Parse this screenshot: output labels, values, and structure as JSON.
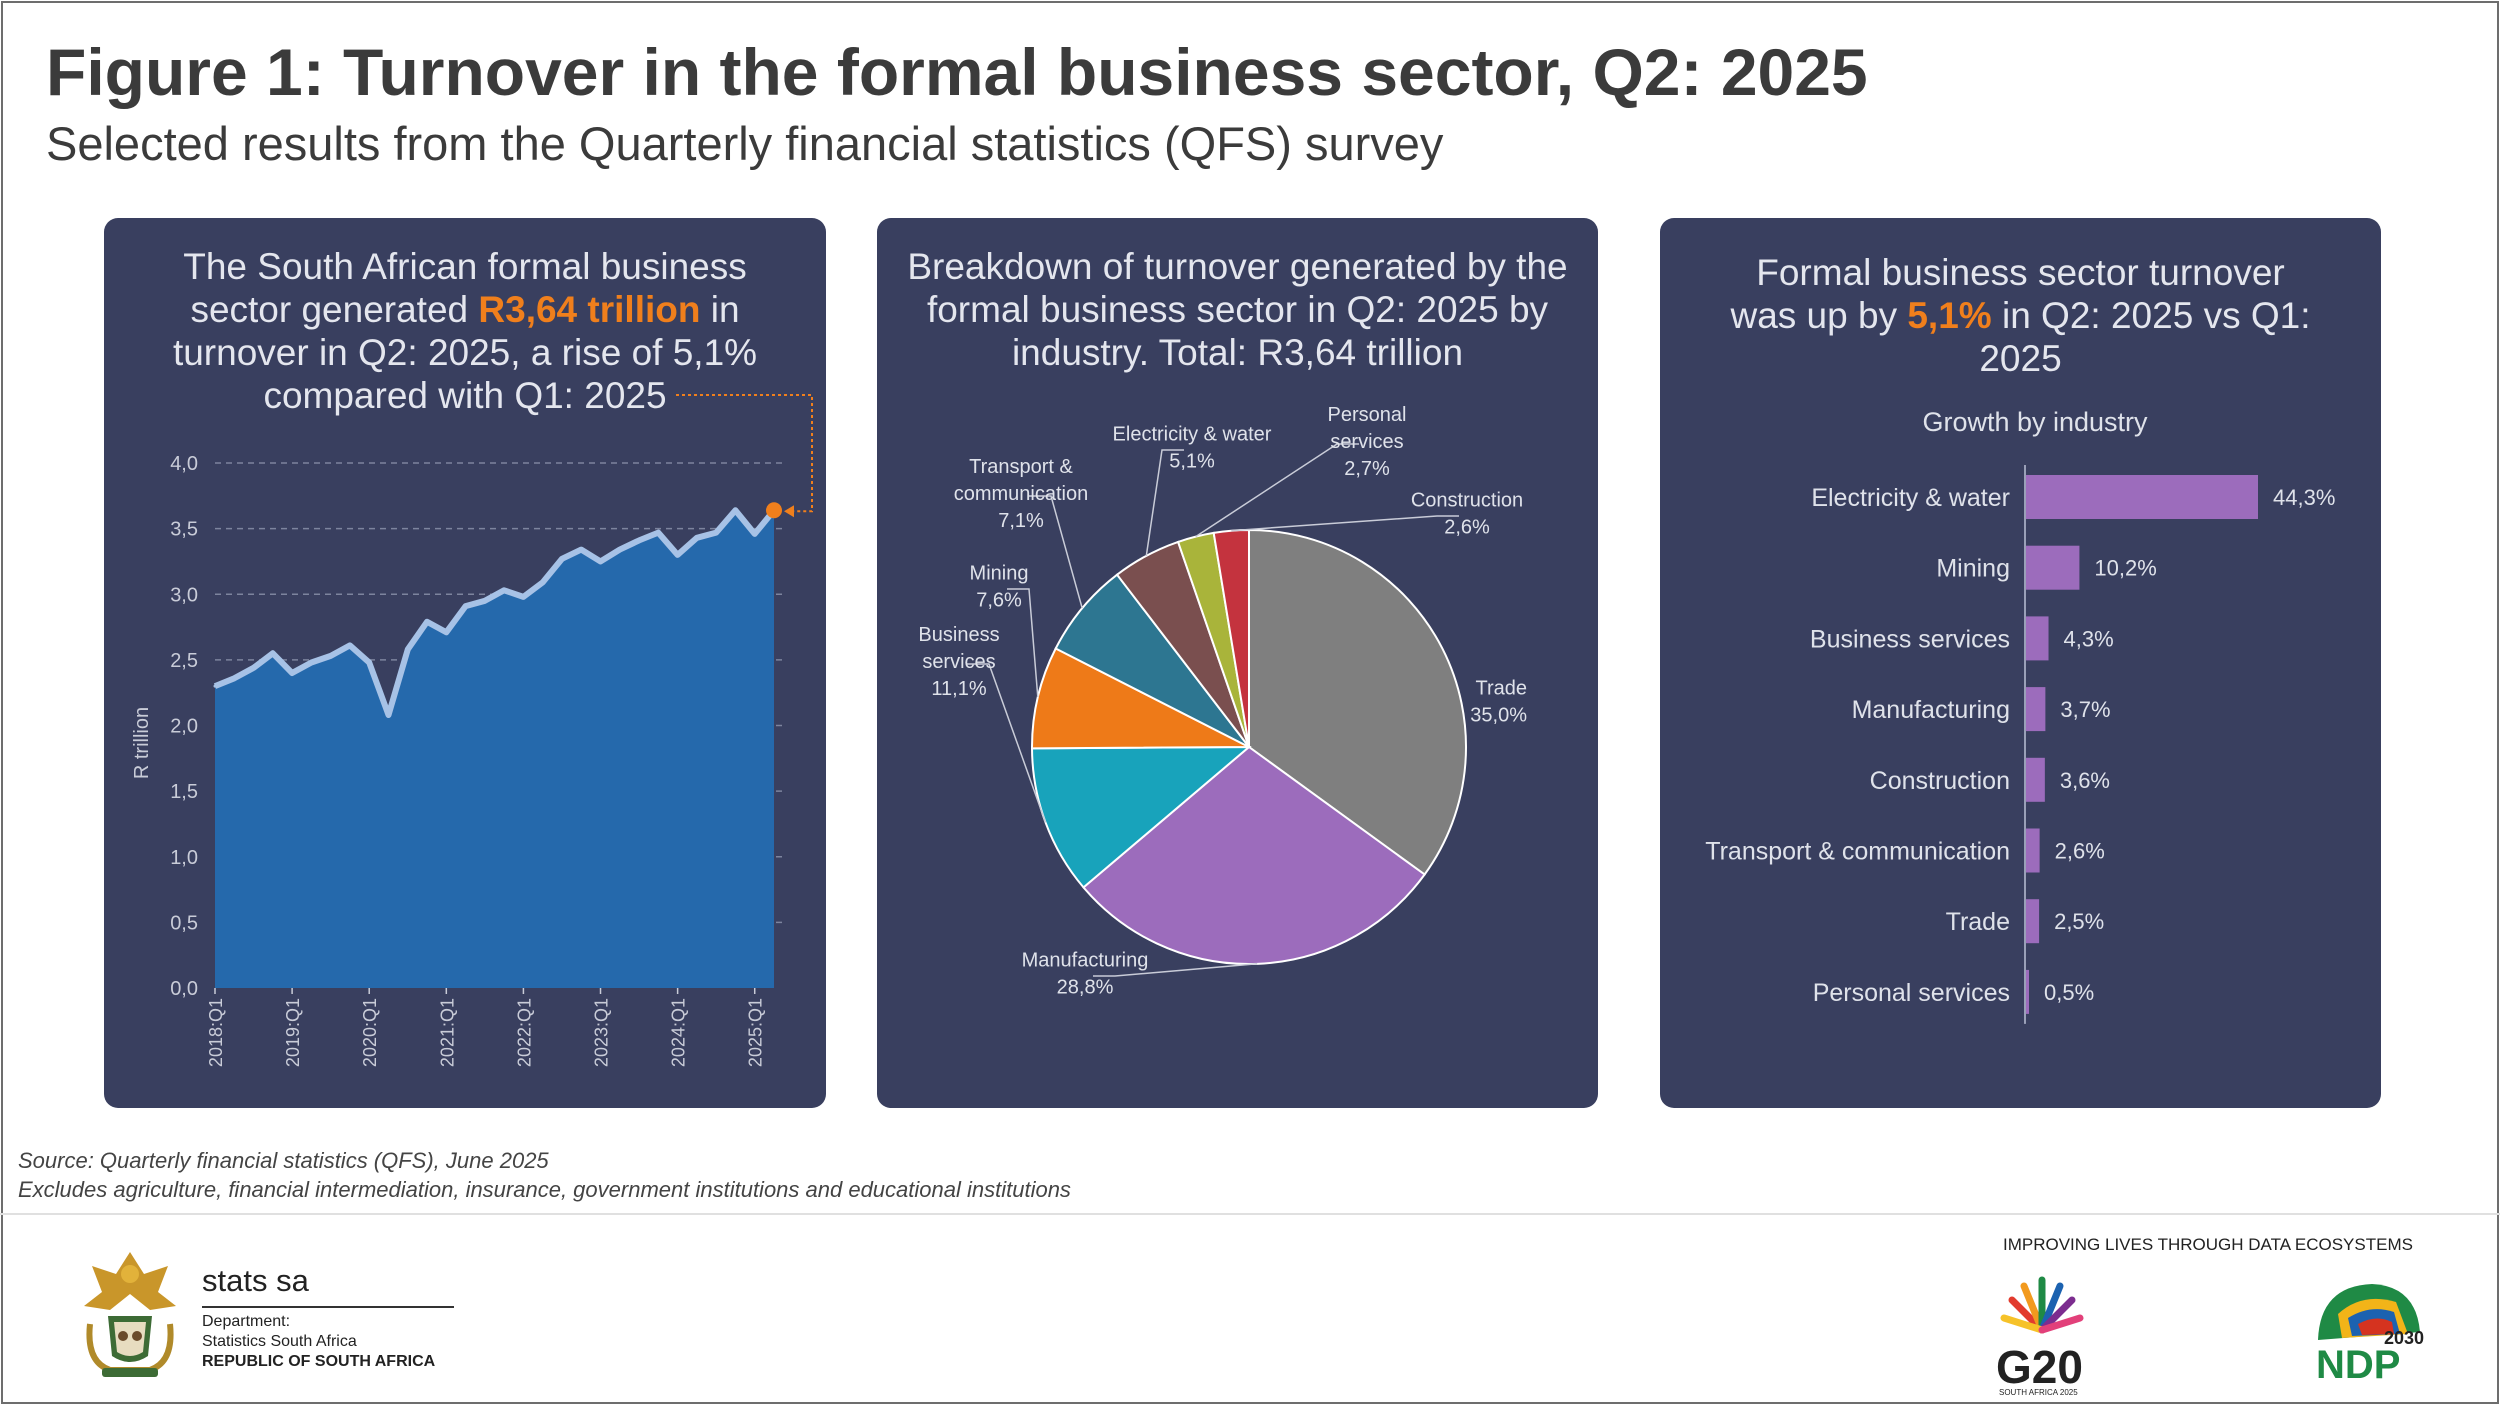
{
  "header": {
    "title": "Figure 1: Turnover in the formal business sector, Q2: 2025",
    "subtitle": "Selected results from the Quarterly financial statistics (QFS) survey"
  },
  "panel1": {
    "text_a": "The South African formal business sector generated ",
    "highlight": "R3,64 trillion",
    "text_b": " in turnover in Q2: 2025, a rise of 5,1% compared with Q1: 2025"
  },
  "panel2": {
    "text": "Breakdown of turnover generated by the formal business sector in Q2: 2025 by industry. Total: R3,64 trillion"
  },
  "panel3": {
    "text_a": "Formal business sector turnover was up by ",
    "highlight": "5,1%",
    "text_b": " in Q2: 2025 vs Q1: 2025"
  },
  "colors": {
    "panel_bg": "#393f5f",
    "accent": "#f07f1c",
    "area_fill": "#2569ac",
    "area_line": "#a7c2e6",
    "bar": "#9c6cbc"
  },
  "chart_data": [
    {
      "type": "area",
      "ylabel": "R trillion",
      "ylim": [
        0,
        4.0
      ],
      "yticks": [
        "0,0",
        "0,5",
        "1,0",
        "1,5",
        "2,0",
        "2,5",
        "3,0",
        "3,5",
        "4,0"
      ],
      "xtick_labels": [
        "2018:Q1",
        "2019:Q1",
        "2020:Q1",
        "2021:Q1",
        "2022:Q1",
        "2023:Q1",
        "2024:Q1",
        "2025:Q1"
      ],
      "xtick_index": [
        0,
        4,
        8,
        12,
        16,
        20,
        24,
        28
      ],
      "values": [
        2.3,
        2.36,
        2.44,
        2.55,
        2.4,
        2.48,
        2.53,
        2.61,
        2.48,
        2.08,
        2.58,
        2.79,
        2.71,
        2.91,
        2.95,
        3.03,
        2.98,
        3.09,
        3.27,
        3.34,
        3.25,
        3.34,
        3.41,
        3.47,
        3.3,
        3.43,
        3.47,
        3.64,
        3.46,
        3.64
      ],
      "grid": "dashed-horizontal",
      "annotation": "last point highlighted in orange"
    },
    {
      "type": "pie",
      "total": "R3,64 trillion",
      "slices": [
        {
          "name": "Trade",
          "pct_label": "35,0%",
          "value": 35.0,
          "color": "#7f7f7f"
        },
        {
          "name": "Manufacturing",
          "pct_label": "28,8%",
          "value": 28.8,
          "color": "#9c6cbc"
        },
        {
          "name": "Business services",
          "name_lines": [
            "Business",
            "services"
          ],
          "pct_label": "11,1%",
          "value": 11.1,
          "color": "#18a3bb"
        },
        {
          "name": "Mining",
          "pct_label": "7,6%",
          "value": 7.6,
          "color": "#ee7a18"
        },
        {
          "name": "Transport & communication",
          "name_lines": [
            "Transport &",
            "communication"
          ],
          "pct_label": "7,1%",
          "value": 7.1,
          "color": "#2d7691"
        },
        {
          "name": "Electricity & water",
          "pct_label": "5,1%",
          "value": 5.1,
          "color": "#7a4f4f"
        },
        {
          "name": "Personal services",
          "name_lines": [
            "Personal",
            "services"
          ],
          "pct_label": "2,7%",
          "value": 2.7,
          "color": "#a9b43a"
        },
        {
          "name": "Construction",
          "pct_label": "2,6%",
          "value": 2.6,
          "color": "#c4333e"
        }
      ]
    },
    {
      "type": "bar",
      "orientation": "horizontal",
      "title": "Growth by industry",
      "categories": [
        "Electricity & water",
        "Mining",
        "Business services",
        "Manufacturing",
        "Construction",
        "Transport & communication",
        "Trade",
        "Personal services"
      ],
      "values": [
        44.3,
        10.2,
        4.3,
        3.7,
        3.6,
        2.6,
        2.5,
        0.5
      ],
      "value_labels": [
        "44,3%",
        "10,2%",
        "4,3%",
        "3,7%",
        "3,6%",
        "2,6%",
        "2,5%",
        "0,5%"
      ]
    }
  ],
  "footer": {
    "source": "Source: Quarterly financial statistics (QFS), June 2025",
    "note": "Excludes agriculture, financial intermediation, insurance, government institutions and educational institutions",
    "brand": "stats sa",
    "dept_line1": "Department:",
    "dept_line2": "Statistics South Africa",
    "dept_line3": "REPUBLIC OF SOUTH AFRICA",
    "tagline": "IMPROVING LIVES THROUGH DATA ECOSYSTEMS",
    "g20": "G20",
    "g20_sub": "SOUTH AFRICA 2025",
    "ndp": "NDP",
    "ndp_year": "2030"
  }
}
